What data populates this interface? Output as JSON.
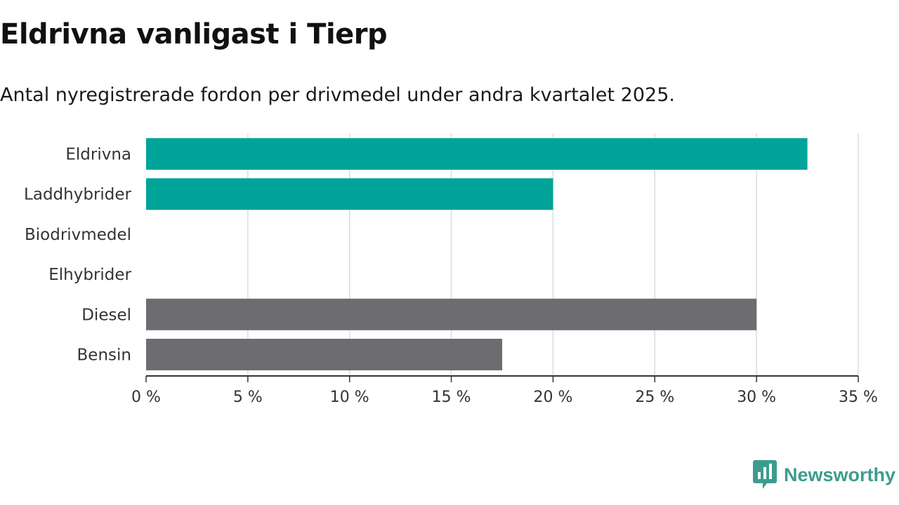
{
  "chart_data": {
    "type": "bar",
    "orientation": "horizontal",
    "title": "Eldrivna vanligast i Tierp",
    "subtitle": "Antal nyregistrerade fordon per drivmedel under andra kvartalet 2025.",
    "categories": [
      "Eldrivna",
      "Laddhybrider",
      "Biodrivmedel",
      "Elhybrider",
      "Diesel",
      "Bensin"
    ],
    "values": [
      32.5,
      20,
      0,
      0,
      30,
      17.5
    ],
    "colors": [
      "#00a499",
      "#00a499",
      "#00a499",
      "#00a499",
      "#6d6c71",
      "#6d6c71"
    ],
    "xlim": [
      0,
      35
    ],
    "xticks": [
      0,
      5,
      10,
      15,
      20,
      25,
      30,
      35
    ],
    "xtick_labels": [
      "0 %",
      "5 %",
      "10 %",
      "15 %",
      "20 %",
      "25 %",
      "30 %",
      "35 %"
    ],
    "grid": true,
    "legend": "none"
  },
  "brand": {
    "name": "Newsworthy",
    "icon": "newsworthy-logo-icon",
    "color": "#3d9c8e"
  }
}
